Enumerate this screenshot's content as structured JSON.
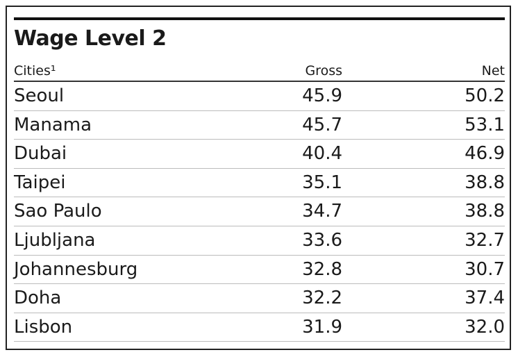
{
  "table": {
    "title": "Wage Level 2",
    "header": [
      "Cities¹",
      "Gross",
      "Net"
    ],
    "rows": [
      [
        "Seoul",
        "45.9",
        "50.2"
      ],
      [
        "Manama",
        "45.7",
        "53.1"
      ],
      [
        "Dubai",
        "40.4",
        "46.9"
      ],
      [
        "Taipei",
        "35.1",
        "38.8"
      ],
      [
        "Sao Paulo",
        "34.7",
        "38.8"
      ],
      [
        "Ljubljana",
        "33.6",
        "32.7"
      ],
      [
        "Johannesburg",
        "32.8",
        "30.7"
      ],
      [
        "Doha",
        "32.2",
        "37.4"
      ],
      [
        "Lisbon",
        "31.9",
        "32.0"
      ]
    ]
  }
}
